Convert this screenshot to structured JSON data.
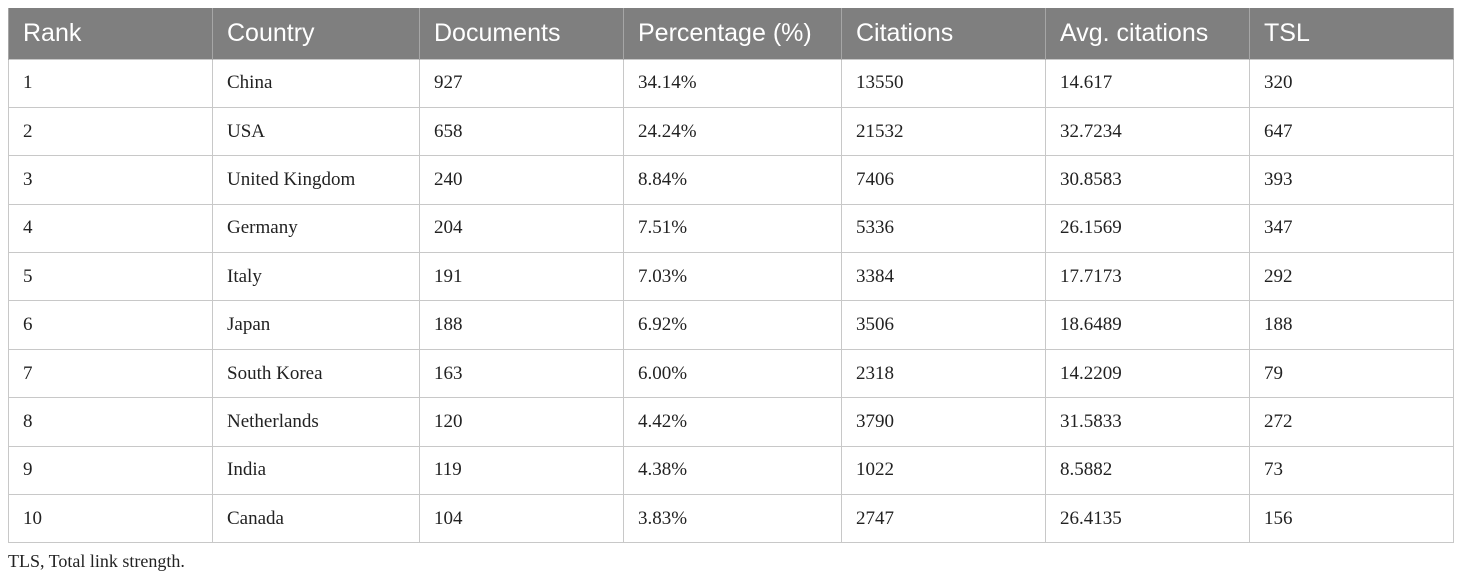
{
  "table": {
    "headers": [
      "Rank",
      "Country",
      "Documents",
      "Percentage (%)",
      "Citations",
      "Avg. citations",
      "TSL"
    ],
    "rows": [
      [
        "1",
        "China",
        "927",
        "34.14%",
        "13550",
        "14.617",
        "320"
      ],
      [
        "2",
        "USA",
        "658",
        "24.24%",
        "21532",
        "32.7234",
        "647"
      ],
      [
        "3",
        "United Kingdom",
        "240",
        "8.84%",
        "7406",
        "30.8583",
        "393"
      ],
      [
        "4",
        "Germany",
        "204",
        "7.51%",
        "5336",
        "26.1569",
        "347"
      ],
      [
        "5",
        "Italy",
        "191",
        "7.03%",
        "3384",
        "17.7173",
        "292"
      ],
      [
        "6",
        "Japan",
        "188",
        "6.92%",
        "3506",
        "18.6489",
        "188"
      ],
      [
        "7",
        "South Korea",
        "163",
        "6.00%",
        "2318",
        "14.2209",
        "79"
      ],
      [
        "8",
        "Netherlands",
        "120",
        "4.42%",
        "3790",
        "31.5833",
        "272"
      ],
      [
        "9",
        "India",
        "119",
        "4.38%",
        "1022",
        "8.5882",
        "73"
      ],
      [
        "10",
        "Canada",
        "104",
        "3.83%",
        "2747",
        "26.4135",
        "156"
      ]
    ]
  },
  "footnote": "TLS, Total link strength.",
  "colors": {
    "header_background": "#7f7f7f",
    "header_text": "#ffffff",
    "grid_line": "#c8c8c8"
  }
}
